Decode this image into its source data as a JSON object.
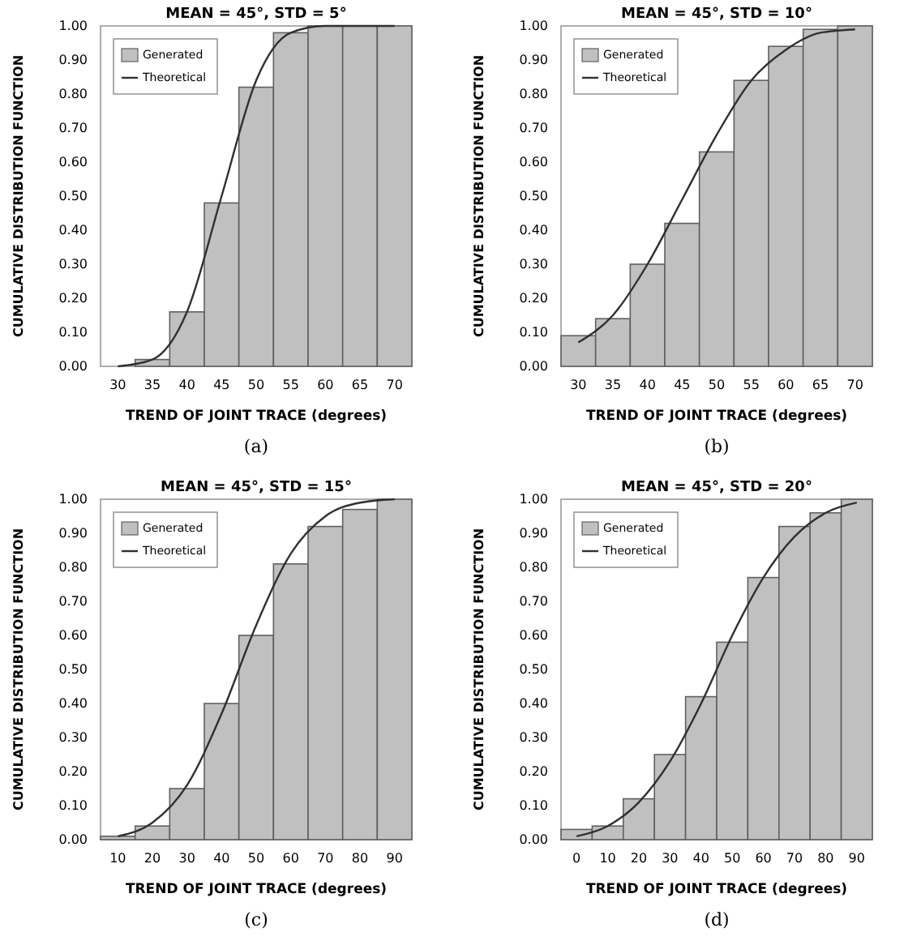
{
  "chart_data": [
    {
      "type": "bar",
      "title": "MEAN = 45°, STD = 5°",
      "xlabel": "TREND OF JOINT TRACE (degrees)",
      "ylabel": "CUMULATIVE DISTRIBUTION FUNCTION",
      "annotations": [
        "(a)"
      ],
      "legend": "top left",
      "categories": [
        "30",
        "35",
        "40",
        "45",
        "50",
        "55",
        "60",
        "65",
        "70"
      ],
      "series": [
        {
          "name": "Generated",
          "color": "#c0c0c0",
          "values": [
            0.0,
            0.02,
            0.16,
            0.48,
            0.82,
            0.98,
            1.0,
            1.0,
            1.0
          ]
        },
        {
          "name": "Theoretical",
          "type": "line",
          "color": "#303030",
          "values": [
            0.0,
            0.02,
            0.16,
            0.5,
            0.84,
            0.98,
            1.0,
            1.0,
            1.0
          ]
        }
      ],
      "ylim": [
        0,
        1
      ],
      "yticks": [
        {
          "value": 0,
          "label": "0.00"
        },
        {
          "value": 0.1,
          "label": "0.10"
        },
        {
          "value": 0.2,
          "label": "0.20"
        },
        {
          "value": 0.3,
          "label": "0.30"
        },
        {
          "value": 0.4,
          "label": "0.40"
        },
        {
          "value": 0.5,
          "label": "0.50"
        },
        {
          "value": 0.6,
          "label": "0.60"
        },
        {
          "value": 0.7,
          "label": "0.70"
        },
        {
          "value": 0.8,
          "label": "0.80"
        },
        {
          "value": 0.9,
          "label": "0.90"
        },
        {
          "value": 1,
          "label": "1.00"
        }
      ]
    },
    {
      "type": "bar",
      "title": "MEAN = 45°, STD = 10°",
      "xlabel": "TREND OF JOINT TRACE (degrees)",
      "ylabel": "CUMULATIVE DISTRIBUTION FUNCTION",
      "annotations": [
        "(b)"
      ],
      "legend": "top left",
      "categories": [
        "30",
        "35",
        "40",
        "45",
        "50",
        "55",
        "60",
        "65",
        "70"
      ],
      "series": [
        {
          "name": "Generated",
          "color": "#c0c0c0",
          "values": [
            0.09,
            0.14,
            0.3,
            0.42,
            0.63,
            0.84,
            0.94,
            0.99,
            1.0
          ]
        },
        {
          "name": "Theoretical",
          "type": "line",
          "color": "#303030",
          "values": [
            0.07,
            0.15,
            0.3,
            0.49,
            0.68,
            0.84,
            0.93,
            0.98,
            0.99
          ]
        }
      ],
      "ylim": [
        0,
        1
      ],
      "yticks": [
        {
          "value": 0,
          "label": "0.00"
        },
        {
          "value": 0.1,
          "label": "0.10"
        },
        {
          "value": 0.2,
          "label": "0.20"
        },
        {
          "value": 0.3,
          "label": "0.30"
        },
        {
          "value": 0.4,
          "label": "0.40"
        },
        {
          "value": 0.5,
          "label": "0.50"
        },
        {
          "value": 0.6,
          "label": "0.60"
        },
        {
          "value": 0.7,
          "label": "0.70"
        },
        {
          "value": 0.8,
          "label": "0.80"
        },
        {
          "value": 0.9,
          "label": "0.90"
        },
        {
          "value": 1,
          "label": "1.00"
        }
      ]
    },
    {
      "type": "bar",
      "title": "MEAN = 45°, STD = 15°",
      "xlabel": "TREND OF JOINT TRACE (degrees)",
      "ylabel": "CUMULATIVE DISTRIBUTION FUNCTION",
      "annotations": [
        "(c)"
      ],
      "legend": "top left",
      "categories": [
        "10",
        "20",
        "30",
        "40",
        "50",
        "60",
        "70",
        "80",
        "90"
      ],
      "series": [
        {
          "name": "Generated",
          "color": "#c0c0c0",
          "values": [
            0.01,
            0.04,
            0.15,
            0.4,
            0.6,
            0.81,
            0.92,
            0.97,
            1.0
          ]
        },
        {
          "name": "Theoretical",
          "type": "line",
          "color": "#303030",
          "values": [
            0.01,
            0.05,
            0.16,
            0.37,
            0.63,
            0.84,
            0.95,
            0.99,
            1.0
          ]
        }
      ],
      "ylim": [
        0,
        1
      ],
      "yticks": [
        {
          "value": 0,
          "label": "0.00"
        },
        {
          "value": 0.1,
          "label": "0.10"
        },
        {
          "value": 0.2,
          "label": "0.20"
        },
        {
          "value": 0.3,
          "label": "0.30"
        },
        {
          "value": 0.4,
          "label": "0.40"
        },
        {
          "value": 0.5,
          "label": "0.50"
        },
        {
          "value": 0.6,
          "label": "0.60"
        },
        {
          "value": 0.7,
          "label": "0.70"
        },
        {
          "value": 0.8,
          "label": "0.80"
        },
        {
          "value": 0.9,
          "label": "0.90"
        },
        {
          "value": 1,
          "label": "1.00"
        }
      ]
    },
    {
      "type": "bar",
      "title": "MEAN = 45°, STD = 20°",
      "xlabel": "TREND OF JOINT TRACE (degrees)",
      "ylabel": "CUMULATIVE DISTRIBUTION FUNCTION",
      "annotations": [
        "(d)"
      ],
      "legend": "top left",
      "categories": [
        "0",
        "10",
        "20",
        "30",
        "40",
        "50",
        "60",
        "70",
        "80",
        "90"
      ],
      "series": [
        {
          "name": "Generated",
          "color": "#c0c0c0",
          "values": [
            0.03,
            0.04,
            0.12,
            0.25,
            0.42,
            0.58,
            0.77,
            0.92,
            0.96,
            1.0
          ]
        },
        {
          "name": "Theoretical",
          "type": "line",
          "color": "#303030",
          "values": [
            0.01,
            0.04,
            0.11,
            0.23,
            0.4,
            0.6,
            0.77,
            0.89,
            0.96,
            0.99
          ]
        }
      ],
      "ylim": [
        0,
        1
      ],
      "yticks": [
        {
          "value": 0,
          "label": "0.00"
        },
        {
          "value": 0.1,
          "label": "0.10"
        },
        {
          "value": 0.2,
          "label": "0.20"
        },
        {
          "value": 0.3,
          "label": "0.30"
        },
        {
          "value": 0.4,
          "label": "0.40"
        },
        {
          "value": 0.5,
          "label": "0.50"
        },
        {
          "value": 0.6,
          "label": "0.60"
        },
        {
          "value": 0.7,
          "label": "0.70"
        },
        {
          "value": 0.8,
          "label": "0.80"
        },
        {
          "value": 0.9,
          "label": "0.90"
        },
        {
          "value": 1,
          "label": "1.00"
        }
      ]
    }
  ]
}
